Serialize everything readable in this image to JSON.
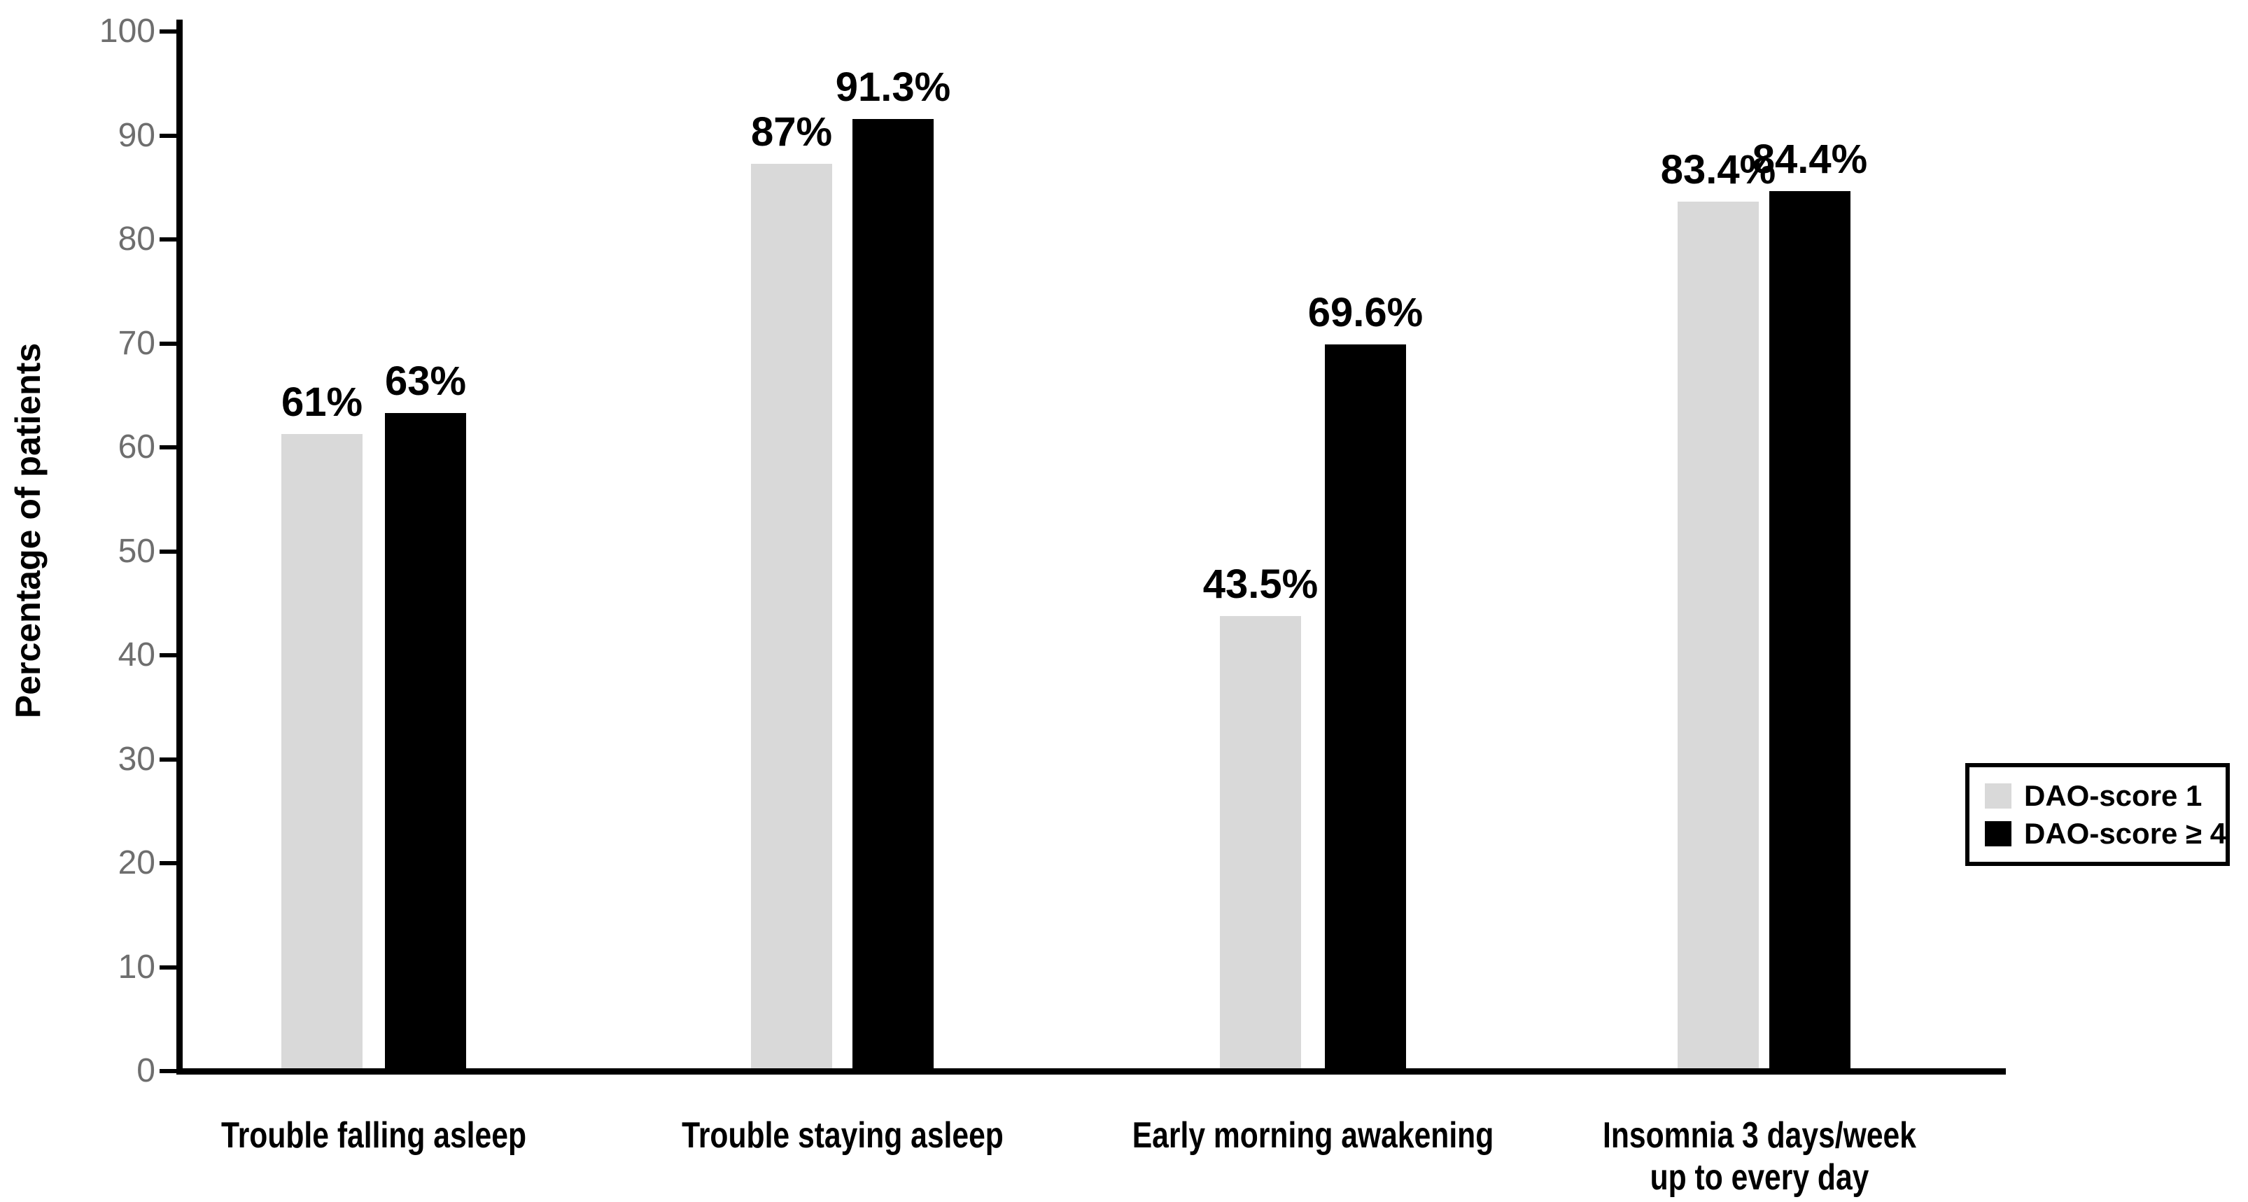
{
  "figure": {
    "background": "#ffffff",
    "axis_color": "#000000",
    "tick_label_color": "#6e6e6e"
  },
  "chart_data": {
    "type": "bar",
    "ylabel": "Percentage of patients",
    "xlabel": "",
    "ylim": [
      0,
      100
    ],
    "yticks": [
      0,
      10,
      20,
      30,
      40,
      50,
      60,
      70,
      80,
      90,
      100
    ],
    "grid": false,
    "legend_position": "right",
    "categories": [
      "Trouble falling asleep",
      "Trouble staying asleep",
      "Early morning awakening",
      "Insomnia 3 days/week\nup to every day"
    ],
    "series": [
      {
        "name": "DAO-score 1",
        "color": "#d9d9d9",
        "values": [
          61,
          87,
          43.5,
          83.4
        ],
        "data_labels": [
          "61%",
          "87%",
          "43.5%",
          "83.4%"
        ]
      },
      {
        "name": "DAO-score ≥ 4",
        "color": "#000000",
        "values": [
          63,
          91.3,
          69.6,
          84.4
        ],
        "data_labels": [
          "63%",
          "91.3%",
          "69.6%",
          "84.4%"
        ]
      }
    ]
  }
}
